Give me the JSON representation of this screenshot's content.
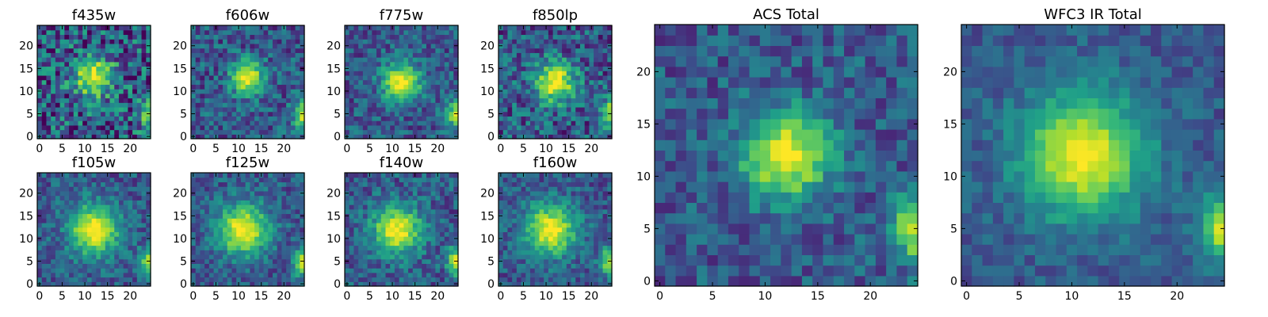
{
  "panels": [
    {
      "title": "f435w",
      "xticks": [
        "0",
        "5",
        "10",
        "15",
        "20"
      ],
      "yticks": [
        "0",
        "5",
        "10",
        "15",
        "20"
      ],
      "peak": [
        12,
        13
      ],
      "spread": 3.0,
      "noise": 0.34,
      "edge_source": true
    },
    {
      "title": "f606w",
      "xticks": [
        "0",
        "5",
        "10",
        "15",
        "20"
      ],
      "yticks": [
        "0",
        "5",
        "10",
        "15",
        "20"
      ],
      "peak": [
        12,
        13
      ],
      "spread": 2.6,
      "noise": 0.22,
      "edge_source": true
    },
    {
      "title": "f775w",
      "xticks": [
        "0",
        "5",
        "10",
        "15",
        "20"
      ],
      "yticks": [
        "0",
        "5",
        "10",
        "15",
        "20"
      ],
      "peak": [
        12,
        12
      ],
      "spread": 3.0,
      "noise": 0.2,
      "edge_source": true
    },
    {
      "title": "f850lp",
      "xticks": [
        "0",
        "5",
        "10",
        "15",
        "20"
      ],
      "yticks": [
        "0",
        "5",
        "10",
        "15",
        "20"
      ],
      "peak": [
        12,
        12
      ],
      "spread": 3.2,
      "noise": 0.26,
      "edge_source": true
    },
    {
      "title": "f105w",
      "xticks": [
        "0",
        "5",
        "10",
        "15",
        "20"
      ],
      "yticks": [
        "0",
        "5",
        "10",
        "15",
        "20"
      ],
      "peak": [
        12,
        12
      ],
      "spread": 4.0,
      "noise": 0.18,
      "edge_source": true
    },
    {
      "title": "f125w",
      "xticks": [
        "0",
        "5",
        "10",
        "15",
        "20"
      ],
      "yticks": [
        "0",
        "5",
        "10",
        "15",
        "20"
      ],
      "peak": [
        11,
        12
      ],
      "spread": 4.0,
      "noise": 0.18,
      "edge_source": true
    },
    {
      "title": "f140w",
      "xticks": [
        "0",
        "5",
        "10",
        "15",
        "20"
      ],
      "yticks": [
        "0",
        "5",
        "10",
        "15",
        "20"
      ],
      "peak": [
        11,
        12
      ],
      "spread": 3.8,
      "noise": 0.2,
      "edge_source": true
    },
    {
      "title": "f160w",
      "xticks": [
        "0",
        "5",
        "10",
        "15",
        "20"
      ],
      "yticks": [
        "0",
        "5",
        "10",
        "15",
        "20"
      ],
      "peak": [
        11,
        12
      ],
      "spread": 4.0,
      "noise": 0.18,
      "edge_source": true
    },
    {
      "title": "ACS Total",
      "xticks": [
        "0",
        "5",
        "10",
        "15",
        "20"
      ],
      "yticks": [
        "0",
        "5",
        "10",
        "15",
        "20"
      ],
      "peak": [
        12,
        12
      ],
      "spread": 3.0,
      "noise": 0.18,
      "edge_source": true
    },
    {
      "title": "WFC3 IR Total",
      "xticks": [
        "0",
        "5",
        "10",
        "15",
        "20"
      ],
      "yticks": [
        "0",
        "5",
        "10",
        "15",
        "20"
      ],
      "peak": [
        11,
        12
      ],
      "spread": 4.2,
      "noise": 0.12,
      "edge_source": true
    }
  ],
  "grid_size": 25,
  "colormap": [
    "#440154",
    "#482878",
    "#3e4989",
    "#31688e",
    "#26828e",
    "#1f9e89",
    "#35b779",
    "#6ece58",
    "#b5de2b",
    "#fde725"
  ]
}
